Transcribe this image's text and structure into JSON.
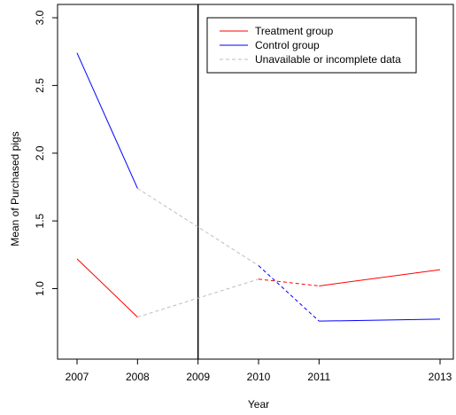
{
  "chart_data": {
    "type": "line",
    "xlabel": "Year",
    "ylabel": "Mean of Purchased pigs",
    "x_ticks": [
      2007,
      2008,
      2009,
      2010,
      2011,
      2013
    ],
    "y_ticks": [
      "1.0",
      "1.5",
      "2.0",
      "2.5",
      "3.0"
    ],
    "xlim": [
      2007,
      2013
    ],
    "ylim": [
      0.79,
      3.0
    ],
    "vertical_line_at": 2009,
    "grid": false,
    "legend_position": "top-right",
    "series": [
      {
        "name": "Treatment group",
        "color": "#ff0000",
        "observed_segments": [
          [
            {
              "x": 2007,
              "y": 1.22
            },
            {
              "x": 2008,
              "y": 0.79
            }
          ],
          [
            {
              "x": 2011,
              "y": 1.02
            },
            {
              "x": 2013,
              "y": 1.14
            }
          ]
        ],
        "dashed_bridge": [
          {
            "x": 2010,
            "y": 1.07
          },
          {
            "x": 2011,
            "y": 1.02
          }
        ]
      },
      {
        "name": "Control group",
        "color": "#0000ff",
        "observed_segments": [
          [
            {
              "x": 2007,
              "y": 2.74
            },
            {
              "x": 2008,
              "y": 1.74
            }
          ],
          [
            {
              "x": 2011,
              "y": 0.76
            },
            {
              "x": 2013,
              "y": 0.775
            }
          ]
        ],
        "dashed_bridge": [
          {
            "x": 2010,
            "y": 1.17
          },
          {
            "x": 2011,
            "y": 0.76
          }
        ]
      }
    ],
    "missing_data": {
      "name": "Unavailable or incomplete data",
      "color": "#bebebe",
      "segments": [
        [
          {
            "x": 2008,
            "y": 0.79
          },
          {
            "x": 2010,
            "y": 1.07
          }
        ],
        [
          {
            "x": 2008,
            "y": 1.74
          },
          {
            "x": 2010,
            "y": 1.17
          }
        ]
      ]
    }
  }
}
